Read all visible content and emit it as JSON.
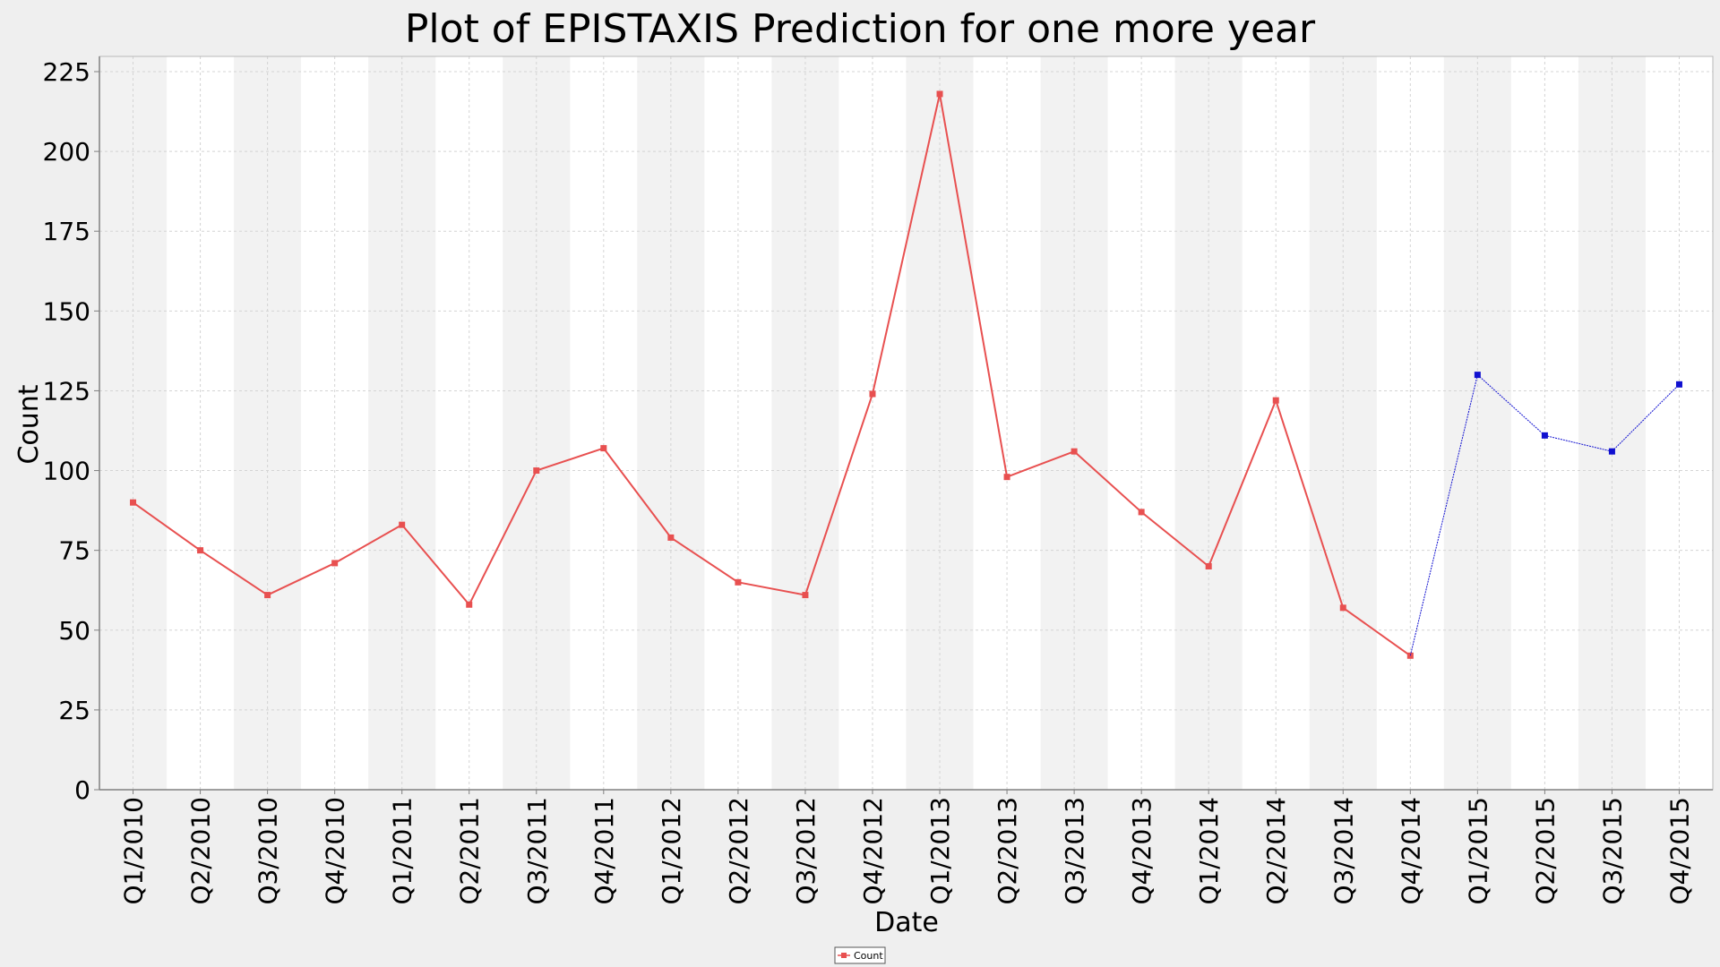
{
  "chart_data": {
    "type": "line",
    "title": "Plot of EPISTAXIS Prediction for one more year",
    "xlabel": "Date",
    "ylabel": "Count",
    "ylim": [
      0,
      230
    ],
    "yticks": [
      0,
      25,
      50,
      75,
      100,
      125,
      150,
      175,
      200,
      225
    ],
    "grid": true,
    "legend_position": "bottom-center",
    "categories": [
      "Q1/2010",
      "Q2/2010",
      "Q3/2010",
      "Q4/2010",
      "Q1/2011",
      "Q2/2011",
      "Q3/2011",
      "Q4/2011",
      "Q1/2012",
      "Q2/2012",
      "Q3/2012",
      "Q4/2012",
      "Q1/2013",
      "Q2/2013",
      "Q3/2013",
      "Q4/2013",
      "Q1/2014",
      "Q2/2014",
      "Q3/2014",
      "Q4/2014",
      "Q1/2015",
      "Q2/2015",
      "Q3/2015",
      "Q4/2015"
    ],
    "series": [
      {
        "name": "Count",
        "color": "#e85050",
        "values": [
          90,
          75,
          61,
          71,
          83,
          58,
          100,
          107,
          79,
          65,
          61,
          124,
          218,
          98,
          106,
          87,
          70,
          122,
          57,
          42,
          null,
          null,
          null,
          null
        ]
      },
      {
        "color": "#1010d0",
        "values": [
          null,
          null,
          null,
          null,
          null,
          null,
          null,
          null,
          null,
          null,
          null,
          null,
          null,
          null,
          null,
          null,
          null,
          null,
          null,
          42,
          130,
          111,
          106,
          127
        ]
      }
    ]
  }
}
